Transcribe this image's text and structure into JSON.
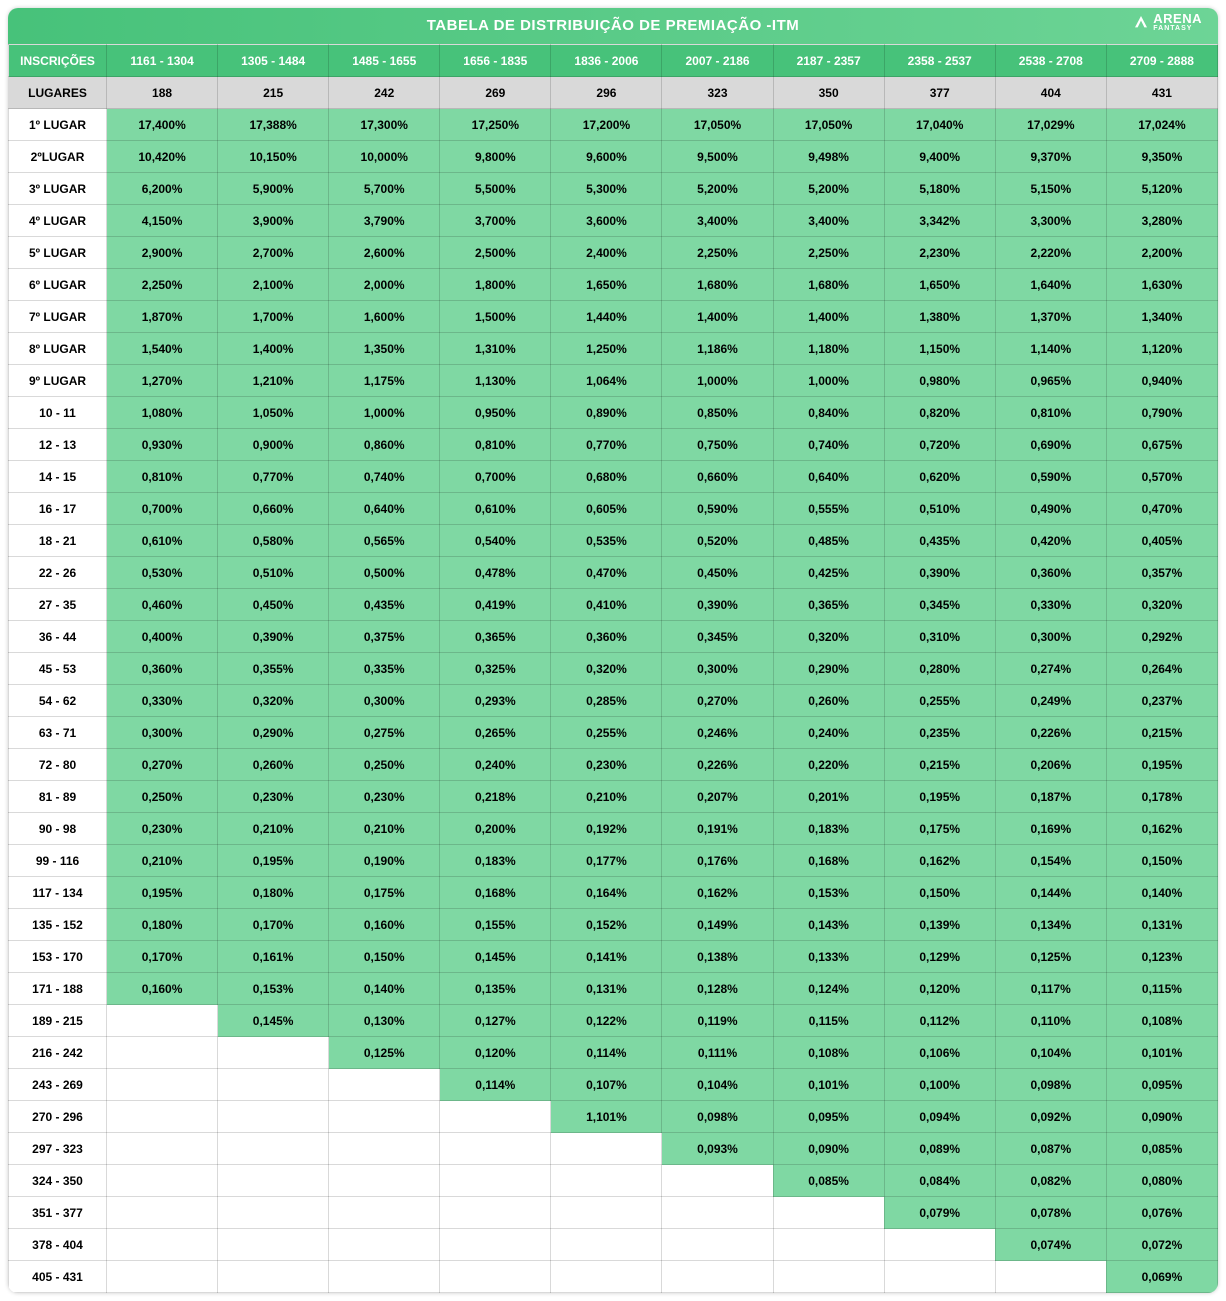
{
  "title": "TABELA DE DISTRIBUIÇÃO DE PREMIAÇÃO -ITM",
  "brand": {
    "name": "ARENA",
    "sub": "FANTASY"
  },
  "header": [
    "INSCRIÇÕES",
    "1161 - 1304",
    "1305 - 1484",
    "1485 - 1655",
    "1656 - 1835",
    "1836 - 2006",
    "2007 - 2186",
    "2187 - 2357",
    "2358 - 2537",
    "2538 - 2708",
    "2709 - 2888"
  ],
  "lugaresRow": [
    "LUGARES",
    "188",
    "215",
    "242",
    "269",
    "296",
    "323",
    "350",
    "377",
    "404",
    "431"
  ],
  "rows": [
    {
      "label": "1º LUGAR",
      "cells": [
        "17,400%",
        "17,388%",
        "17,300%",
        "17,250%",
        "17,200%",
        "17,050%",
        "17,050%",
        "17,040%",
        "17,029%",
        "17,024%"
      ]
    },
    {
      "label": "2ºLUGAR",
      "cells": [
        "10,420%",
        "10,150%",
        "10,000%",
        "9,800%",
        "9,600%",
        "9,500%",
        "9,498%",
        "9,400%",
        "9,370%",
        "9,350%"
      ]
    },
    {
      "label": "3º LUGAR",
      "cells": [
        "6,200%",
        "5,900%",
        "5,700%",
        "5,500%",
        "5,300%",
        "5,200%",
        "5,200%",
        "5,180%",
        "5,150%",
        "5,120%"
      ]
    },
    {
      "label": "4º LUGAR",
      "cells": [
        "4,150%",
        "3,900%",
        "3,790%",
        "3,700%",
        "3,600%",
        "3,400%",
        "3,400%",
        "3,342%",
        "3,300%",
        "3,280%"
      ]
    },
    {
      "label": "5º LUGAR",
      "cells": [
        "2,900%",
        "2,700%",
        "2,600%",
        "2,500%",
        "2,400%",
        "2,250%",
        "2,250%",
        "2,230%",
        "2,220%",
        "2,200%"
      ]
    },
    {
      "label": "6º LUGAR",
      "cells": [
        "2,250%",
        "2,100%",
        "2,000%",
        "1,800%",
        "1,650%",
        "1,680%",
        "1,680%",
        "1,650%",
        "1,640%",
        "1,630%"
      ]
    },
    {
      "label": "7º LUGAR",
      "cells": [
        "1,870%",
        "1,700%",
        "1,600%",
        "1,500%",
        "1,440%",
        "1,400%",
        "1,400%",
        "1,380%",
        "1,370%",
        "1,340%"
      ]
    },
    {
      "label": "8º LUGAR",
      "cells": [
        "1,540%",
        "1,400%",
        "1,350%",
        "1,310%",
        "1,250%",
        "1,186%",
        "1,180%",
        "1,150%",
        "1,140%",
        "1,120%"
      ]
    },
    {
      "label": "9º LUGAR",
      "cells": [
        "1,270%",
        "1,210%",
        "1,175%",
        "1,130%",
        "1,064%",
        "1,000%",
        "1,000%",
        "0,980%",
        "0,965%",
        "0,940%"
      ]
    },
    {
      "label": "10 - 11",
      "cells": [
        "1,080%",
        "1,050%",
        "1,000%",
        "0,950%",
        "0,890%",
        "0,850%",
        "0,840%",
        "0,820%",
        "0,810%",
        "0,790%"
      ]
    },
    {
      "label": "12 - 13",
      "cells": [
        "0,930%",
        "0,900%",
        "0,860%",
        "0,810%",
        "0,770%",
        "0,750%",
        "0,740%",
        "0,720%",
        "0,690%",
        "0,675%"
      ]
    },
    {
      "label": "14 - 15",
      "cells": [
        "0,810%",
        "0,770%",
        "0,740%",
        "0,700%",
        "0,680%",
        "0,660%",
        "0,640%",
        "0,620%",
        "0,590%",
        "0,570%"
      ]
    },
    {
      "label": "16 - 17",
      "cells": [
        "0,700%",
        "0,660%",
        "0,640%",
        "0,610%",
        "0,605%",
        "0,590%",
        "0,555%",
        "0,510%",
        "0,490%",
        "0,470%"
      ]
    },
    {
      "label": "18 - 21",
      "cells": [
        "0,610%",
        "0,580%",
        "0,565%",
        "0,540%",
        "0,535%",
        "0,520%",
        "0,485%",
        "0,435%",
        "0,420%",
        "0,405%"
      ]
    },
    {
      "label": "22 - 26",
      "cells": [
        "0,530%",
        "0,510%",
        "0,500%",
        "0,478%",
        "0,470%",
        "0,450%",
        "0,425%",
        "0,390%",
        "0,360%",
        "0,357%"
      ]
    },
    {
      "label": "27 - 35",
      "cells": [
        "0,460%",
        "0,450%",
        "0,435%",
        "0,419%",
        "0,410%",
        "0,390%",
        "0,365%",
        "0,345%",
        "0,330%",
        "0,320%"
      ]
    },
    {
      "label": "36 - 44",
      "cells": [
        "0,400%",
        "0,390%",
        "0,375%",
        "0,365%",
        "0,360%",
        "0,345%",
        "0,320%",
        "0,310%",
        "0,300%",
        "0,292%"
      ]
    },
    {
      "label": "45 - 53",
      "cells": [
        "0,360%",
        "0,355%",
        "0,335%",
        "0,325%",
        "0,320%",
        "0,300%",
        "0,290%",
        "0,280%",
        "0,274%",
        "0,264%"
      ]
    },
    {
      "label": "54 - 62",
      "cells": [
        "0,330%",
        "0,320%",
        "0,300%",
        "0,293%",
        "0,285%",
        "0,270%",
        "0,260%",
        "0,255%",
        "0,249%",
        "0,237%"
      ]
    },
    {
      "label": "63 - 71",
      "cells": [
        "0,300%",
        "0,290%",
        "0,275%",
        "0,265%",
        "0,255%",
        "0,246%",
        "0,240%",
        "0,235%",
        "0,226%",
        "0,215%"
      ]
    },
    {
      "label": "72 - 80",
      "cells": [
        "0,270%",
        "0,260%",
        "0,250%",
        "0,240%",
        "0,230%",
        "0,226%",
        "0,220%",
        "0,215%",
        "0,206%",
        "0,195%"
      ]
    },
    {
      "label": "81 - 89",
      "cells": [
        "0,250%",
        "0,230%",
        "0,230%",
        "0,218%",
        "0,210%",
        "0,207%",
        "0,201%",
        "0,195%",
        "0,187%",
        "0,178%"
      ]
    },
    {
      "label": "90 - 98",
      "cells": [
        "0,230%",
        "0,210%",
        "0,210%",
        "0,200%",
        "0,192%",
        "0,191%",
        "0,183%",
        "0,175%",
        "0,169%",
        "0,162%"
      ]
    },
    {
      "label": "99 - 116",
      "cells": [
        "0,210%",
        "0,195%",
        "0,190%",
        "0,183%",
        "0,177%",
        "0,176%",
        "0,168%",
        "0,162%",
        "0,154%",
        "0,150%"
      ]
    },
    {
      "label": "117 - 134",
      "cells": [
        "0,195%",
        "0,180%",
        "0,175%",
        "0,168%",
        "0,164%",
        "0,162%",
        "0,153%",
        "0,150%",
        "0,144%",
        "0,140%"
      ]
    },
    {
      "label": "135 - 152",
      "cells": [
        "0,180%",
        "0,170%",
        "0,160%",
        "0,155%",
        "0,152%",
        "0,149%",
        "0,143%",
        "0,139%",
        "0,134%",
        "0,131%"
      ]
    },
    {
      "label": "153 - 170",
      "cells": [
        "0,170%",
        "0,161%",
        "0,150%",
        "0,145%",
        "0,141%",
        "0,138%",
        "0,133%",
        "0,129%",
        "0,125%",
        "0,123%"
      ]
    },
    {
      "label": "171 - 188",
      "cells": [
        "0,160%",
        "0,153%",
        "0,140%",
        "0,135%",
        "0,131%",
        "0,128%",
        "0,124%",
        "0,120%",
        "0,117%",
        "0,115%"
      ]
    },
    {
      "label": "189 - 215",
      "cells": [
        "",
        "0,145%",
        "0,130%",
        "0,127%",
        "0,122%",
        "0,119%",
        "0,115%",
        "0,112%",
        "0,110%",
        "0,108%"
      ]
    },
    {
      "label": "216 - 242",
      "cells": [
        "",
        "",
        "0,125%",
        "0,120%",
        "0,114%",
        "0,111%",
        "0,108%",
        "0,106%",
        "0,104%",
        "0,101%"
      ]
    },
    {
      "label": "243 - 269",
      "cells": [
        "",
        "",
        "",
        "0,114%",
        "0,107%",
        "0,104%",
        "0,101%",
        "0,100%",
        "0,098%",
        "0,095%"
      ]
    },
    {
      "label": "270 - 296",
      "cells": [
        "",
        "",
        "",
        "",
        "1,101%",
        "0,098%",
        "0,095%",
        "0,094%",
        "0,092%",
        "0,090%"
      ]
    },
    {
      "label": "297 - 323",
      "cells": [
        "",
        "",
        "",
        "",
        "",
        "0,093%",
        "0,090%",
        "0,089%",
        "0,087%",
        "0,085%"
      ]
    },
    {
      "label": "324 - 350",
      "cells": [
        "",
        "",
        "",
        "",
        "",
        "",
        "0,085%",
        "0,084%",
        "0,082%",
        "0,080%"
      ]
    },
    {
      "label": "351 - 377",
      "cells": [
        "",
        "",
        "",
        "",
        "",
        "",
        "",
        "0,079%",
        "0,078%",
        "0,076%"
      ]
    },
    {
      "label": "378 - 404",
      "cells": [
        "",
        "",
        "",
        "",
        "",
        "",
        "",
        "",
        "0,074%",
        "0,072%"
      ]
    },
    {
      "label": "405 - 431",
      "cells": [
        "",
        "",
        "",
        "",
        "",
        "",
        "",
        "",
        "",
        "0,069%"
      ]
    }
  ],
  "colors": {
    "header_bg": "#47c27a",
    "cell_bg": "#7fd8a3",
    "lugares_bg": "#d9d9d9"
  }
}
